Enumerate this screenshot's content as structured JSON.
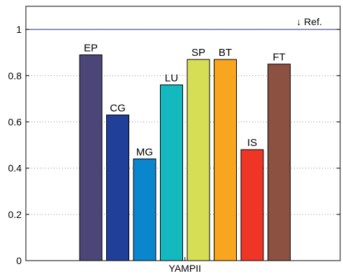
{
  "chart_data": {
    "type": "bar",
    "categories": [
      "EP",
      "CG",
      "MG",
      "LU",
      "SP",
      "BT",
      "IS",
      "FT"
    ],
    "values": [
      0.89,
      0.63,
      0.44,
      0.76,
      0.87,
      0.87,
      0.48,
      0.85
    ],
    "colors": [
      "#4b4677",
      "#1f3f99",
      "#0a86cc",
      "#14b9c0",
      "#d6de55",
      "#f8a51f",
      "#ef3626",
      "#8c5141"
    ],
    "xtick_label": "YAMPII",
    "ylim": [
      0,
      1.1
    ],
    "yticks": [
      0,
      0.2,
      0.4,
      0.6,
      0.8,
      1
    ],
    "ytick_labels": [
      "0",
      "0.2",
      "0.4",
      "0.6",
      "0.8",
      "1"
    ],
    "reference_line": {
      "value": 1,
      "label": "↓ Ref.",
      "color": "#2a2a7a"
    },
    "grid": "y-dotted",
    "title": "",
    "xlabel": "",
    "ylabel": ""
  }
}
